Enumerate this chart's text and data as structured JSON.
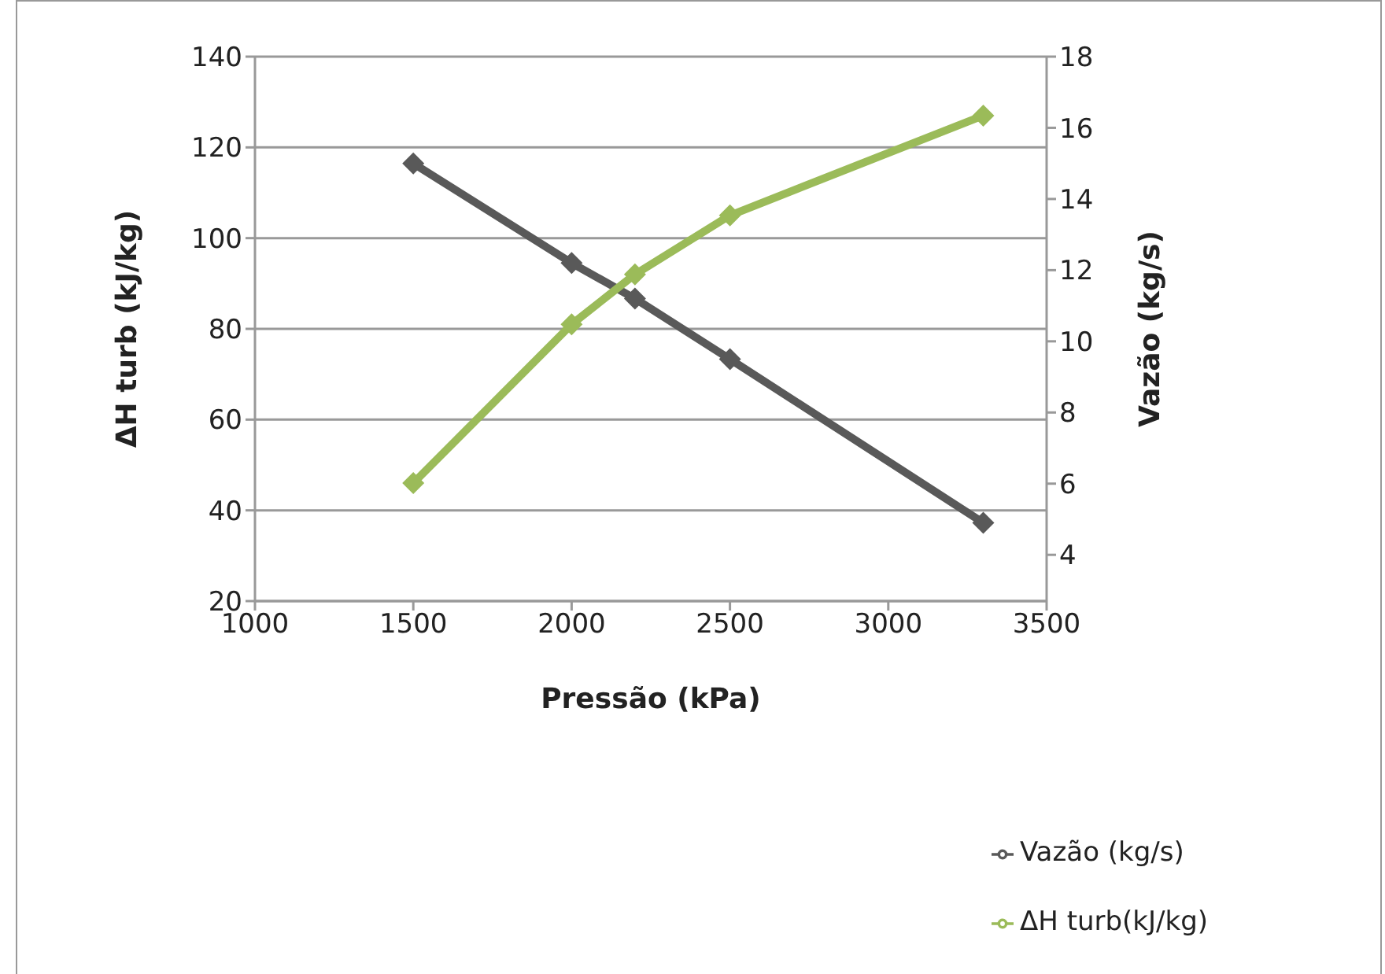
{
  "chart_data": {
    "type": "line",
    "xlabel": "Pressão (kPa)",
    "ylabel": "ΔH turb (kJ/kg)",
    "y2label": "Vazão  (kg/s)",
    "x": [
      1500,
      2000,
      2200,
      2500,
      3300
    ],
    "series": [
      {
        "name": "Vazão  (kg/s)",
        "color": "#595959",
        "axis": "y2",
        "values": [
          15.0,
          12.2,
          11.2,
          9.5,
          4.9
        ]
      },
      {
        "name": "ΔH turb(kJ/kg)",
        "color": "#9bbb59",
        "values": [
          46,
          81,
          92,
          105,
          127
        ]
      }
    ],
    "xlim": [
      1000,
      3500
    ],
    "xticks": [
      1000,
      1500,
      2000,
      2500,
      3000,
      3500
    ],
    "ylim": [
      20,
      140
    ],
    "yticks": [
      20,
      40,
      60,
      80,
      100,
      120,
      140
    ],
    "y2lim": [
      2.7,
      18
    ],
    "y2ticks": [
      4,
      6,
      8,
      10,
      12,
      14,
      16,
      18
    ],
    "grid": "y",
    "legend": "bottom right",
    "marker": "diamond",
    "line_style": "solid"
  }
}
